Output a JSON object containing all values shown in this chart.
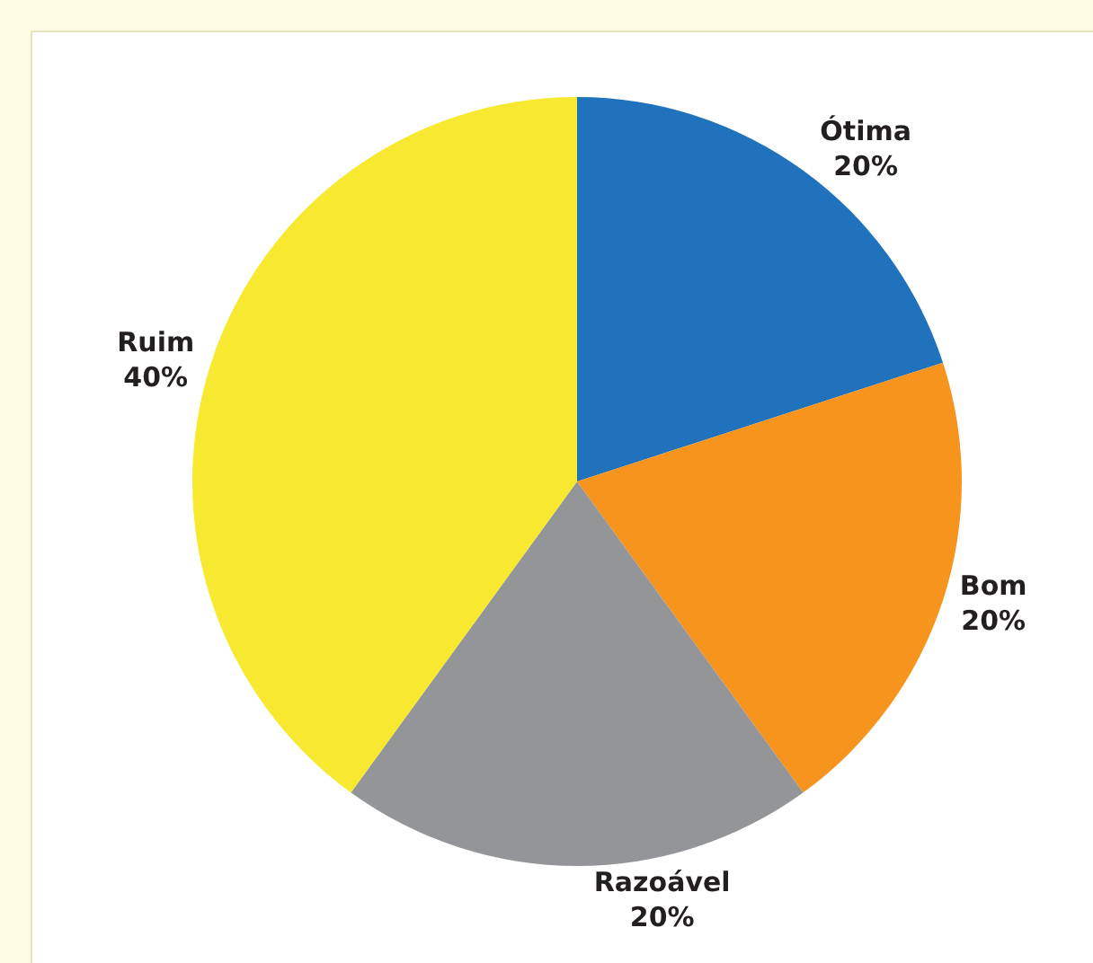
{
  "chart_data": {
    "type": "pie",
    "categories": [
      "Ótima",
      "Bom",
      "Razoável",
      "Ruim"
    ],
    "values": [
      20,
      20,
      20,
      40
    ],
    "value_labels": [
      "20%",
      "20%",
      "20%",
      "40%"
    ],
    "colors": [
      "#1f72bb",
      "#f7941d",
      "#939598",
      "#f7e92f"
    ],
    "legend": false
  }
}
